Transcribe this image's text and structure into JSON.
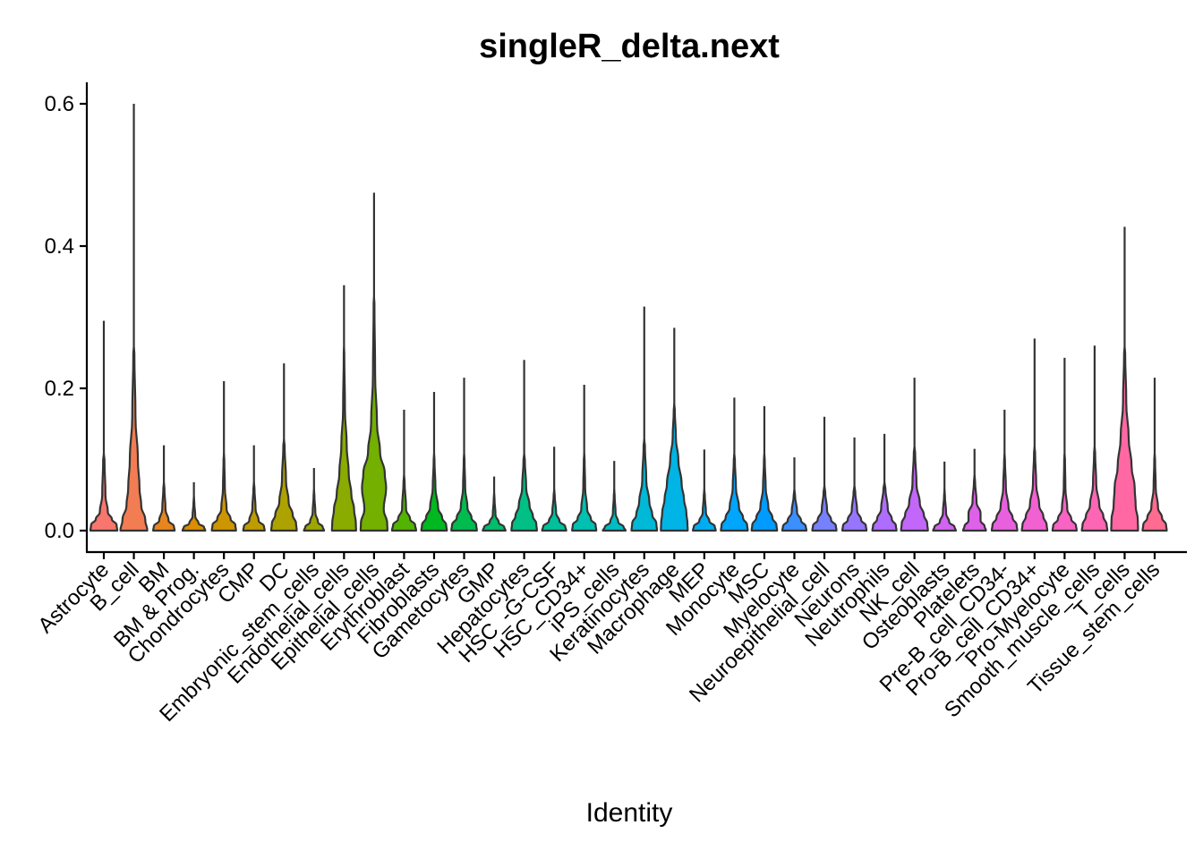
{
  "chart_data": {
    "type": "violin",
    "title": "singleR_delta.next",
    "xlabel": "Identity",
    "ylabel": "",
    "ylim": [
      -0.03,
      0.63
    ],
    "yticks": [
      0.0,
      0.2,
      0.4,
      0.6
    ],
    "ytick_labels": [
      "0.0",
      "0.2",
      "0.4",
      "0.6"
    ],
    "legend": "none",
    "grid": false,
    "series": [
      {
        "name": "Astrocyte",
        "max": 0.295,
        "color": "#F8766D",
        "width": [
          1.0,
          0.95,
          0.6,
          0.3,
          0.12,
          0.05
        ],
        "at": [
          0.0,
          0.008,
          0.016,
          0.026,
          0.05,
          0.1
        ]
      },
      {
        "name": "B_cell",
        "max": 0.6,
        "color": "#F27D52",
        "width": [
          1.0,
          0.85,
          0.55,
          0.42,
          0.3,
          0.12,
          0.04
        ],
        "at": [
          0.0,
          0.015,
          0.035,
          0.06,
          0.1,
          0.16,
          0.25
        ]
      },
      {
        "name": "BM",
        "max": 0.12,
        "color": "#E7851E",
        "width": [
          0.8,
          0.75,
          0.35,
          0.12,
          0.04
        ],
        "at": [
          0.0,
          0.006,
          0.014,
          0.03,
          0.06
        ]
      },
      {
        "name": "BM & Prog.",
        "max": 0.068,
        "color": "#DA8E00",
        "width": [
          0.85,
          0.75,
          0.35,
          0.1,
          0.03
        ],
        "at": [
          0.0,
          0.005,
          0.01,
          0.02,
          0.04
        ]
      },
      {
        "name": "Chondrocytes",
        "max": 0.21,
        "color": "#CD9600",
        "width": [
          0.9,
          0.85,
          0.5,
          0.2,
          0.07,
          0.03
        ],
        "at": [
          0.0,
          0.008,
          0.016,
          0.03,
          0.06,
          0.1
        ]
      },
      {
        "name": "CMP",
        "max": 0.12,
        "color": "#BE9C00",
        "width": [
          0.8,
          0.75,
          0.35,
          0.12,
          0.04
        ],
        "at": [
          0.0,
          0.006,
          0.014,
          0.03,
          0.06
        ]
      },
      {
        "name": "DC",
        "max": 0.235,
        "color": "#AEA200",
        "width": [
          0.95,
          0.9,
          0.65,
          0.35,
          0.15,
          0.05
        ],
        "at": [
          0.0,
          0.01,
          0.022,
          0.04,
          0.07,
          0.12
        ]
      },
      {
        "name": "Embryonic_stem_cells",
        "max": 0.088,
        "color": "#9DA700",
        "width": [
          0.75,
          0.65,
          0.3,
          0.1,
          0.03
        ],
        "at": [
          0.0,
          0.005,
          0.012,
          0.025,
          0.05
        ]
      },
      {
        "name": "Endothelial_cells",
        "max": 0.345,
        "color": "#8AAB00",
        "width": [
          0.9,
          0.88,
          0.75,
          0.55,
          0.35,
          0.2,
          0.07,
          0.02
        ],
        "at": [
          0.0,
          0.01,
          0.03,
          0.05,
          0.08,
          0.12,
          0.17,
          0.25
        ]
      },
      {
        "name": "Epithelial_cells",
        "max": 0.475,
        "color": "#73B000",
        "width": [
          1.0,
          0.98,
          0.72,
          0.9,
          0.8,
          0.45,
          0.22,
          0.08,
          0.03
        ],
        "at": [
          0.0,
          0.01,
          0.03,
          0.06,
          0.08,
          0.11,
          0.15,
          0.22,
          0.32
        ]
      },
      {
        "name": "Erythroblast",
        "max": 0.17,
        "color": "#53B400",
        "width": [
          0.9,
          0.82,
          0.45,
          0.15,
          0.04
        ],
        "at": [
          0.0,
          0.008,
          0.016,
          0.03,
          0.07
        ]
      },
      {
        "name": "Fibroblasts",
        "max": 0.195,
        "color": "#00B81F",
        "width": [
          0.95,
          0.9,
          0.6,
          0.3,
          0.1,
          0.03
        ],
        "at": [
          0.0,
          0.008,
          0.018,
          0.032,
          0.06,
          0.1
        ]
      },
      {
        "name": "Gametocytes",
        "max": 0.215,
        "color": "#00BB4E",
        "width": [
          0.95,
          0.9,
          0.55,
          0.25,
          0.08,
          0.03
        ],
        "at": [
          0.0,
          0.008,
          0.018,
          0.032,
          0.06,
          0.1
        ]
      },
      {
        "name": "GMP",
        "max": 0.076,
        "color": "#00BE6C",
        "width": [
          0.85,
          0.75,
          0.35,
          0.1,
          0.03
        ],
        "at": [
          0.0,
          0.005,
          0.011,
          0.022,
          0.045
        ]
      },
      {
        "name": "Hepatocytes",
        "max": 0.24,
        "color": "#00C085",
        "width": [
          0.95,
          0.9,
          0.65,
          0.4,
          0.15,
          0.05
        ],
        "at": [
          0.0,
          0.01,
          0.02,
          0.035,
          0.06,
          0.1
        ]
      },
      {
        "name": "HSC_-G-CSF",
        "max": 0.118,
        "color": "#00C19C",
        "width": [
          0.9,
          0.82,
          0.4,
          0.14,
          0.04
        ],
        "at": [
          0.0,
          0.006,
          0.013,
          0.025,
          0.05
        ]
      },
      {
        "name": "HSC_CD34+",
        "max": 0.205,
        "color": "#00C0B1",
        "width": [
          0.9,
          0.85,
          0.5,
          0.22,
          0.07,
          0.03
        ],
        "at": [
          0.0,
          0.008,
          0.016,
          0.03,
          0.06,
          0.1
        ]
      },
      {
        "name": "iPS_cells",
        "max": 0.098,
        "color": "#00BDC4",
        "width": [
          0.85,
          0.7,
          0.3,
          0.1,
          0.03
        ],
        "at": [
          0.0,
          0.005,
          0.012,
          0.024,
          0.05
        ]
      },
      {
        "name": "Keratinocytes",
        "max": 0.315,
        "color": "#00B9D6",
        "width": [
          0.95,
          0.9,
          0.6,
          0.38,
          0.15,
          0.05
        ],
        "at": [
          0.0,
          0.01,
          0.022,
          0.04,
          0.07,
          0.12
        ]
      },
      {
        "name": "Macrophage",
        "max": 0.285,
        "color": "#00B4E5",
        "width": [
          1.0,
          0.98,
          0.9,
          0.72,
          0.55,
          0.3,
          0.12,
          0.04
        ],
        "at": [
          0.0,
          0.01,
          0.025,
          0.045,
          0.065,
          0.1,
          0.13,
          0.17
        ]
      },
      {
        "name": "MEP",
        "max": 0.114,
        "color": "#00ADF2",
        "width": [
          0.85,
          0.78,
          0.38,
          0.12,
          0.04
        ],
        "at": [
          0.0,
          0.006,
          0.013,
          0.025,
          0.05
        ]
      },
      {
        "name": "Monocyte",
        "max": 0.187,
        "color": "#00A5FC",
        "width": [
          1.0,
          0.95,
          0.65,
          0.35,
          0.12,
          0.04
        ],
        "at": [
          0.0,
          0.008,
          0.018,
          0.032,
          0.06,
          0.1
        ]
      },
      {
        "name": "MSC",
        "max": 0.175,
        "color": "#009BFF",
        "width": [
          0.95,
          0.9,
          0.6,
          0.3,
          0.1,
          0.03
        ],
        "at": [
          0.0,
          0.008,
          0.018,
          0.032,
          0.06,
          0.1
        ]
      },
      {
        "name": "Myelocyte",
        "max": 0.103,
        "color": "#3B8FFF",
        "width": [
          0.9,
          0.85,
          0.5,
          0.2,
          0.05
        ],
        "at": [
          0.0,
          0.006,
          0.014,
          0.026,
          0.05
        ]
      },
      {
        "name": "Neuroepithelial_cell",
        "max": 0.16,
        "color": "#7681FF",
        "width": [
          0.9,
          0.85,
          0.5,
          0.2,
          0.06
        ],
        "at": [
          0.0,
          0.007,
          0.015,
          0.028,
          0.055
        ]
      },
      {
        "name": "Neurons",
        "max": 0.131,
        "color": "#9775FF",
        "width": [
          0.9,
          0.85,
          0.5,
          0.2,
          0.06
        ],
        "at": [
          0.0,
          0.007,
          0.015,
          0.028,
          0.055
        ]
      },
      {
        "name": "Neutrophils",
        "max": 0.136,
        "color": "#AF6DFF",
        "width": [
          0.9,
          0.85,
          0.55,
          0.25,
          0.07
        ],
        "at": [
          0.0,
          0.007,
          0.016,
          0.03,
          0.06
        ]
      },
      {
        "name": "NK_cell",
        "max": 0.215,
        "color": "#C267F9",
        "width": [
          1.0,
          0.95,
          0.7,
          0.4,
          0.15,
          0.05
        ],
        "at": [
          0.0,
          0.01,
          0.022,
          0.038,
          0.065,
          0.11
        ]
      },
      {
        "name": "Osteoblasts",
        "max": 0.097,
        "color": "#D164F2",
        "width": [
          0.85,
          0.75,
          0.35,
          0.12,
          0.03
        ],
        "at": [
          0.0,
          0.005,
          0.012,
          0.024,
          0.05
        ]
      },
      {
        "name": "Platelets",
        "max": 0.115,
        "color": "#DE61E9",
        "width": [
          0.85,
          0.75,
          0.45,
          0.45,
          0.15,
          0.04
        ],
        "at": [
          0.0,
          0.006,
          0.014,
          0.024,
          0.04,
          0.07
        ]
      },
      {
        "name": "Pre-B_cell_CD34-",
        "max": 0.17,
        "color": "#E960DF",
        "width": [
          0.95,
          0.9,
          0.6,
          0.3,
          0.1,
          0.03
        ],
        "at": [
          0.0,
          0.008,
          0.018,
          0.032,
          0.06,
          0.1
        ]
      },
      {
        "name": "Pro-B_cell_CD34+",
        "max": 0.27,
        "color": "#F261D2",
        "width": [
          0.95,
          0.9,
          0.65,
          0.35,
          0.12,
          0.04
        ],
        "at": [
          0.0,
          0.008,
          0.02,
          0.035,
          0.065,
          0.11
        ]
      },
      {
        "name": "Pro-Myelocyte",
        "max": 0.243,
        "color": "#F863C4",
        "width": [
          0.9,
          0.85,
          0.5,
          0.2,
          0.06,
          0.03
        ],
        "at": [
          0.0,
          0.007,
          0.016,
          0.03,
          0.06,
          0.1
        ]
      },
      {
        "name": "Smooth_muscle_cells",
        "max": 0.26,
        "color": "#FC66B4",
        "width": [
          0.95,
          0.9,
          0.65,
          0.35,
          0.12,
          0.04
        ],
        "at": [
          0.0,
          0.008,
          0.02,
          0.035,
          0.065,
          0.11
        ]
      },
      {
        "name": "T_cells",
        "max": 0.427,
        "color": "#FF68A3",
        "width": [
          1.0,
          0.98,
          0.82,
          0.75,
          0.52,
          0.3,
          0.12,
          0.04
        ],
        "at": [
          0.0,
          0.015,
          0.035,
          0.06,
          0.09,
          0.13,
          0.18,
          0.25
        ]
      },
      {
        "name": "Tissue_stem_cells",
        "max": 0.215,
        "color": "#FF6C90",
        "width": [
          0.9,
          0.85,
          0.55,
          0.25,
          0.08,
          0.03
        ],
        "at": [
          0.0,
          0.008,
          0.018,
          0.032,
          0.06,
          0.1
        ]
      }
    ]
  }
}
